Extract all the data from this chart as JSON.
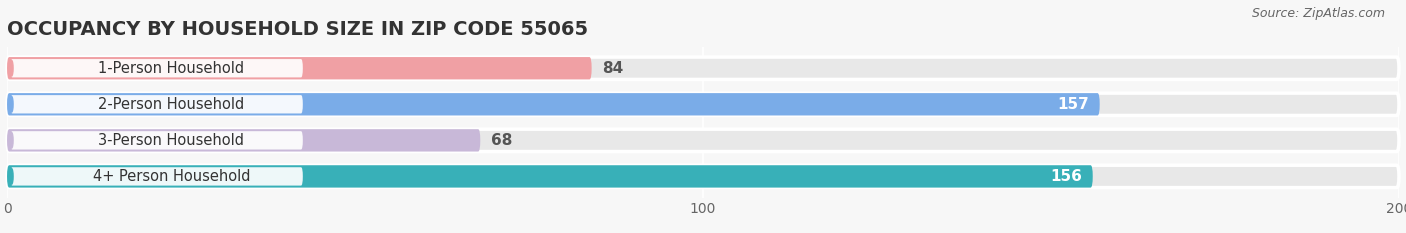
{
  "title": "OCCUPANCY BY HOUSEHOLD SIZE IN ZIP CODE 55065",
  "source": "Source: ZipAtlas.com",
  "categories": [
    "1-Person Household",
    "2-Person Household",
    "3-Person Household",
    "4+ Person Household"
  ],
  "values": [
    84,
    157,
    68,
    156
  ],
  "bar_colors": [
    "#f0a0a4",
    "#7aace8",
    "#c8b8d8",
    "#38b0b8"
  ],
  "label_inside": [
    false,
    true,
    false,
    true
  ],
  "xlim": [
    0,
    200
  ],
  "xticks": [
    0,
    100,
    200
  ],
  "background_color": "#f7f7f7",
  "bar_bg_color": "#e8e8e8",
  "title_fontsize": 14,
  "source_fontsize": 9,
  "tick_fontsize": 10,
  "value_fontsize": 11,
  "cat_fontsize": 10.5
}
